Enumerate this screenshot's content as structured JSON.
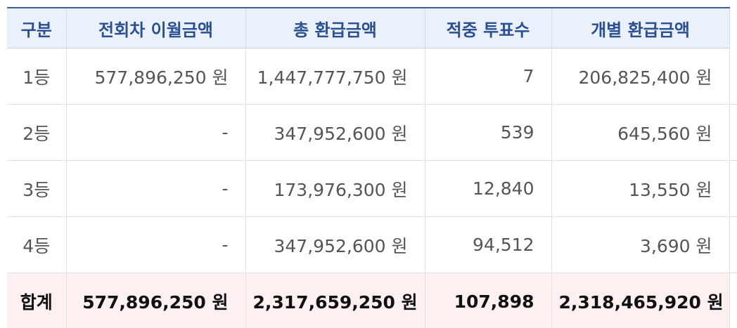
{
  "headers": [
    "구분",
    "전회차 이월금액",
    "총 환급금액",
    "적중 투표수",
    "개별 환급금액"
  ],
  "rows": [
    {
      "rank": "1등",
      "carryover": "577,896,250 원",
      "total_refund": "1,447,777,750 원",
      "votes": "7",
      "individual_refund": "206,825,400 원"
    },
    {
      "rank": "2등",
      "carryover": "-",
      "total_refund": "347,952,600 원",
      "votes": "539",
      "individual_refund": "645,560 원"
    },
    {
      "rank": "3등",
      "carryover": "-",
      "total_refund": "173,976,300 원",
      "votes": "12,840",
      "individual_refund": "13,550 원"
    },
    {
      "rank": "4등",
      "carryover": "-",
      "total_refund": "347,952,600 원",
      "votes": "94,512",
      "individual_refund": "3,690 원"
    }
  ],
  "total": {
    "rank": "합계",
    "carryover": "577,896,250 원",
    "total_refund": "2,317,659,250 원",
    "votes": "107,898",
    "individual_refund": "2,318,465,920 원"
  },
  "colors": {
    "header_bg": "#eaf1fb",
    "header_text": "#2a4f93",
    "total_row_bg": "#fcf0f1"
  }
}
